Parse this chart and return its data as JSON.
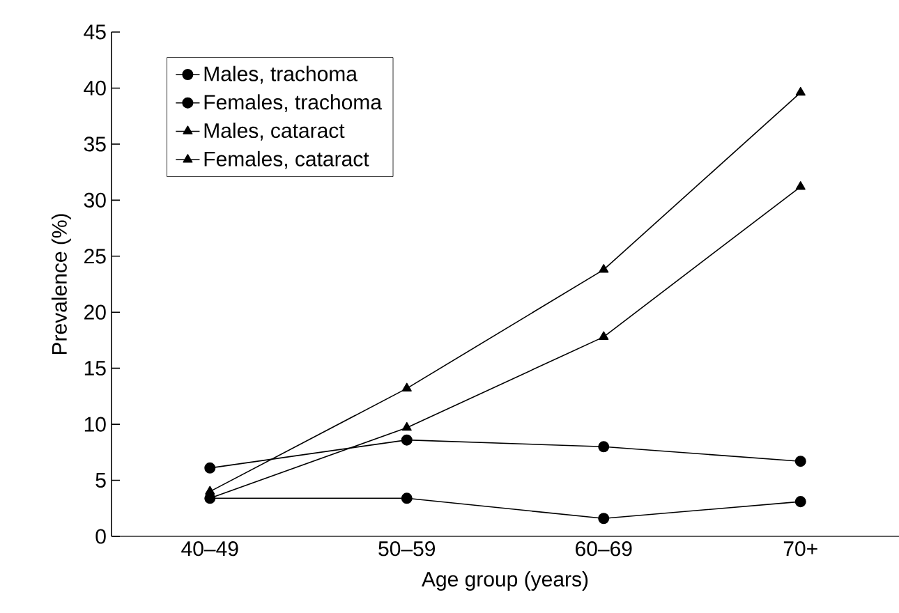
{
  "chart_data": {
    "type": "line",
    "xlabel": "Age group (years)",
    "ylabel": "Prevalence (%)",
    "categories": [
      "40–49",
      "50–59",
      "60–69",
      "70+"
    ],
    "ylim": [
      0,
      45
    ],
    "yticks": [
      0,
      5,
      10,
      15,
      20,
      25,
      30,
      35,
      40,
      45
    ],
    "grid": false,
    "legend": "top left",
    "line_style": "solid",
    "series": [
      {
        "name": "Males, trachoma",
        "color": "#000000",
        "marker": "circle",
        "values": [
          3.4,
          3.4,
          1.6,
          3.1
        ]
      },
      {
        "name": "Females, trachoma",
        "color": "#000000",
        "marker": "circle",
        "values": [
          6.1,
          8.6,
          8.0,
          6.7
        ]
      },
      {
        "name": "Males, cataract",
        "color": "#000000",
        "marker": "triangle",
        "values": [
          3.4,
          9.7,
          17.8,
          31.2
        ]
      },
      {
        "name": "Females, cataract",
        "color": "#000000",
        "marker": "triangle",
        "values": [
          4.0,
          13.2,
          23.8,
          39.6
        ]
      }
    ]
  }
}
